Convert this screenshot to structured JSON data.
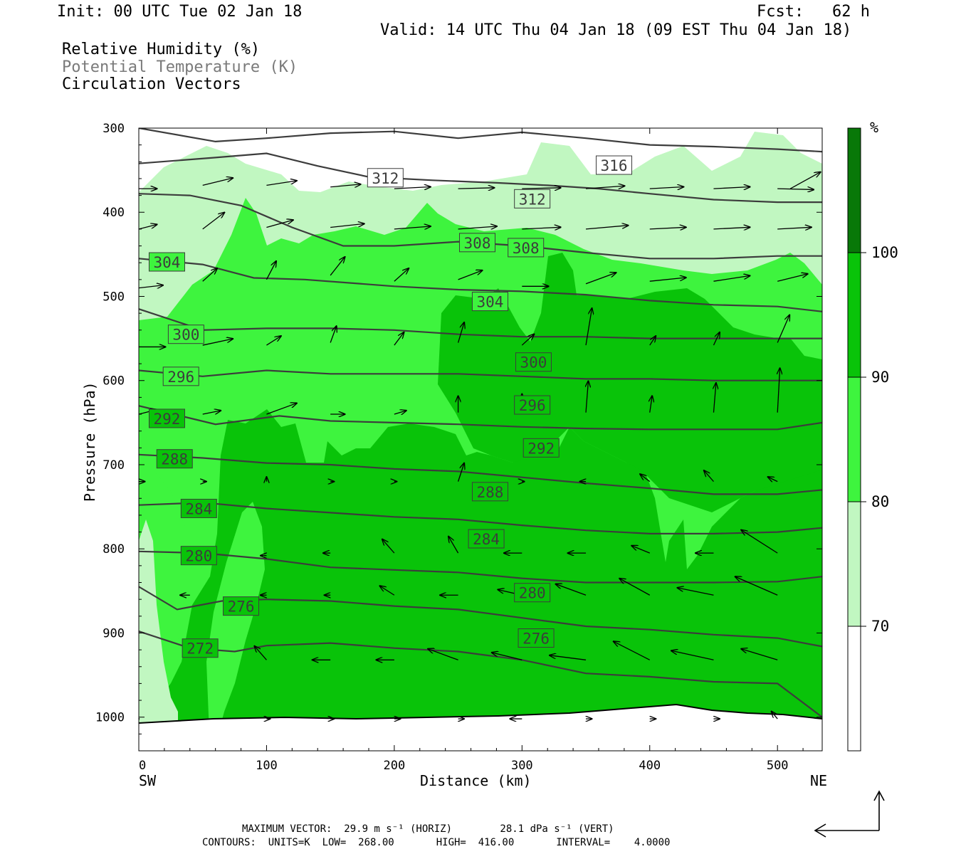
{
  "header": {
    "init": "Init: 00 UTC Tue 02 Jan 18",
    "fcst": "Fcst:   62 h",
    "valid": "Valid: 14 UTC Thu 04 Jan 18 (09 EST Thu 04 Jan 18)"
  },
  "fields": {
    "rh": "Relative Humidity (%)",
    "theta": "Potential Temperature (K)",
    "vectors": "Circulation Vectors"
  },
  "chart_data": {
    "type": "heatmap",
    "xlabel": "Distance (km)",
    "ylabel": "Pressure (hPa)",
    "xlim": [
      0,
      535
    ],
    "ylim": [
      1040,
      300
    ],
    "x_ticks": [
      0,
      100,
      200,
      300,
      400,
      500
    ],
    "y_ticks": [
      300,
      400,
      500,
      600,
      700,
      800,
      900,
      1000
    ],
    "end_labels": {
      "left": "SW",
      "right": "NE"
    },
    "colorbar": {
      "unit": "%",
      "levels": [
        70,
        80,
        90,
        100
      ],
      "colors": [
        "#ffffff",
        "#c1f7c1",
        "#3ef43e",
        "#09c309",
        "#087808"
      ]
    },
    "theta_contours": [
      {
        "value": 272,
        "label_x": 48,
        "label_p": 918,
        "points": [
          [
            0,
            898
          ],
          [
            40,
            918
          ],
          [
            75,
            922
          ],
          [
            100,
            915
          ],
          [
            150,
            912
          ],
          [
            200,
            918
          ],
          [
            250,
            922
          ],
          [
            300,
            932
          ],
          [
            350,
            948
          ],
          [
            400,
            952
          ],
          [
            450,
            958
          ],
          [
            500,
            960
          ],
          [
            535,
            1000
          ]
        ]
      },
      {
        "value": 276,
        "label_x": 80,
        "label_p": 868,
        "points": [
          [
            0,
            845
          ],
          [
            30,
            872
          ],
          [
            65,
            862
          ],
          [
            100,
            860
          ],
          [
            150,
            862
          ],
          [
            200,
            868
          ],
          [
            250,
            872
          ],
          [
            300,
            882
          ],
          [
            350,
            892
          ],
          [
            400,
            896
          ],
          [
            450,
            902
          ],
          [
            500,
            906
          ],
          [
            535,
            916
          ]
        ]
      },
      {
        "value": 280,
        "label_x": 47,
        "label_p": 808,
        "points": [
          [
            0,
            803
          ],
          [
            50,
            805
          ],
          [
            100,
            812
          ],
          [
            150,
            822
          ],
          [
            200,
            825
          ],
          [
            250,
            828
          ],
          [
            300,
            835
          ],
          [
            350,
            840
          ],
          [
            400,
            840
          ],
          [
            450,
            840
          ],
          [
            500,
            839
          ],
          [
            535,
            833
          ]
        ]
      },
      {
        "value": 284,
        "label_x": 47,
        "label_p": 752,
        "points": [
          [
            0,
            748
          ],
          [
            50,
            745
          ],
          [
            100,
            752
          ],
          [
            150,
            757
          ],
          [
            200,
            762
          ],
          [
            250,
            765
          ],
          [
            300,
            772
          ],
          [
            350,
            778
          ],
          [
            400,
            782
          ],
          [
            450,
            782
          ],
          [
            500,
            780
          ],
          [
            535,
            775
          ]
        ]
      },
      {
        "value": 288,
        "label_x": 28,
        "label_p": 693,
        "points": [
          [
            0,
            688
          ],
          [
            50,
            692
          ],
          [
            100,
            698
          ],
          [
            150,
            700
          ],
          [
            200,
            705
          ],
          [
            250,
            708
          ],
          [
            300,
            715
          ],
          [
            350,
            722
          ],
          [
            400,
            728
          ],
          [
            450,
            735
          ],
          [
            500,
            735
          ],
          [
            535,
            730
          ]
        ]
      },
      {
        "value": 292,
        "label_x": 22,
        "label_p": 645,
        "points": [
          [
            0,
            630
          ],
          [
            60,
            652
          ],
          [
            110,
            642
          ],
          [
            150,
            648
          ],
          [
            200,
            650
          ],
          [
            250,
            652
          ],
          [
            300,
            655
          ],
          [
            350,
            657
          ],
          [
            400,
            658
          ],
          [
            450,
            658
          ],
          [
            500,
            658
          ],
          [
            535,
            650
          ]
        ]
      },
      {
        "value": 296,
        "label_x": 33,
        "label_p": 595,
        "points": [
          [
            0,
            588
          ],
          [
            50,
            595
          ],
          [
            100,
            588
          ],
          [
            150,
            592
          ],
          [
            200,
            592
          ],
          [
            250,
            592
          ],
          [
            300,
            595
          ],
          [
            350,
            598
          ],
          [
            400,
            598
          ],
          [
            450,
            600
          ],
          [
            500,
            600
          ],
          [
            535,
            600
          ]
        ]
      },
      {
        "value": 300,
        "label_x": 37,
        "label_p": 545,
        "points": [
          [
            0,
            515
          ],
          [
            50,
            540
          ],
          [
            100,
            538
          ],
          [
            150,
            538
          ],
          [
            200,
            540
          ],
          [
            250,
            545
          ],
          [
            300,
            548
          ],
          [
            350,
            548
          ],
          [
            400,
            550
          ],
          [
            450,
            550
          ],
          [
            500,
            550
          ],
          [
            535,
            550
          ]
        ]
      },
      {
        "value": 304,
        "label_x": 22,
        "label_p": 459,
        "points": [
          [
            0,
            455
          ],
          [
            50,
            462
          ],
          [
            90,
            478
          ],
          [
            130,
            480
          ],
          [
            200,
            488
          ],
          [
            250,
            492
          ],
          [
            300,
            494
          ],
          [
            350,
            498
          ],
          [
            400,
            505
          ],
          [
            450,
            510
          ],
          [
            500,
            512
          ],
          [
            535,
            518
          ]
        ]
      },
      {
        "value": 308,
        "label_x": 265,
        "label_p": 436,
        "points": [
          [
            0,
            378
          ],
          [
            40,
            380
          ],
          [
            80,
            392
          ],
          [
            120,
            418
          ],
          [
            160,
            440
          ],
          [
            200,
            440
          ],
          [
            250,
            435
          ],
          [
            300,
            440
          ],
          [
            350,
            448
          ],
          [
            400,
            455
          ],
          [
            450,
            455
          ],
          [
            500,
            452
          ],
          [
            535,
            452
          ]
        ]
      },
      {
        "value": 312,
        "label_x": 193,
        "label_p": 359,
        "points": [
          [
            0,
            342
          ],
          [
            60,
            335
          ],
          [
            100,
            330
          ],
          [
            140,
            345
          ],
          [
            180,
            358
          ],
          [
            230,
            362
          ],
          [
            280,
            365
          ],
          [
            320,
            368
          ],
          [
            360,
            372
          ],
          [
            400,
            378
          ],
          [
            450,
            385
          ],
          [
            500,
            388
          ],
          [
            535,
            388
          ]
        ]
      },
      {
        "value": 316,
        "label_x": 372,
        "label_p": 344,
        "points": [
          [
            0,
            300
          ],
          [
            60,
            316
          ],
          [
            100,
            312
          ],
          [
            150,
            306
          ],
          [
            200,
            304
          ],
          [
            250,
            312
          ],
          [
            300,
            305
          ],
          [
            350,
            312
          ],
          [
            400,
            320
          ],
          [
            450,
            322
          ],
          [
            500,
            325
          ],
          [
            535,
            328
          ]
        ]
      }
    ],
    "extra_labels": [
      {
        "value": 312,
        "x": 308,
        "p": 384
      },
      {
        "value": 308,
        "x": 303,
        "p": 442
      },
      {
        "value": 304,
        "x": 275,
        "p": 506
      },
      {
        "value": 300,
        "x": 309,
        "p": 578
      },
      {
        "value": 296,
        "x": 308,
        "p": 629
      },
      {
        "value": 292,
        "x": 315,
        "p": 680
      },
      {
        "value": 288,
        "x": 275,
        "p": 732
      },
      {
        "value": 284,
        "x": 272,
        "p": 788
      },
      {
        "value": 280,
        "x": 308,
        "p": 852
      },
      {
        "value": 276,
        "x": 311,
        "p": 906
      }
    ],
    "vectors": [
      [
        0,
        372,
        15,
        0
      ],
      [
        50,
        368,
        25,
        8
      ],
      [
        100,
        368,
        25,
        5
      ],
      [
        150,
        370,
        25,
        3
      ],
      [
        200,
        372,
        30,
        2
      ],
      [
        250,
        372,
        30,
        1
      ],
      [
        300,
        372,
        32,
        1
      ],
      [
        350,
        372,
        32,
        3
      ],
      [
        400,
        372,
        28,
        2
      ],
      [
        450,
        372,
        30,
        2
      ],
      [
        500,
        372,
        30,
        -1
      ],
      [
        510,
        372,
        25,
        18
      ],
      [
        0,
        420,
        15,
        5
      ],
      [
        50,
        420,
        18,
        18
      ],
      [
        100,
        418,
        22,
        8
      ],
      [
        150,
        418,
        28,
        4
      ],
      [
        200,
        420,
        30,
        3
      ],
      [
        250,
        420,
        32,
        3
      ],
      [
        300,
        420,
        32,
        2
      ],
      [
        350,
        420,
        35,
        4
      ],
      [
        400,
        420,
        30,
        2
      ],
      [
        450,
        420,
        30,
        2
      ],
      [
        500,
        420,
        28,
        2
      ],
      [
        0,
        490,
        20,
        3
      ],
      [
        50,
        482,
        12,
        14
      ],
      [
        100,
        480,
        8,
        20
      ],
      [
        150,
        475,
        12,
        20
      ],
      [
        200,
        482,
        12,
        14
      ],
      [
        250,
        480,
        20,
        10
      ],
      [
        300,
        488,
        22,
        0
      ],
      [
        350,
        485,
        25,
        12
      ],
      [
        400,
        482,
        30,
        4
      ],
      [
        450,
        482,
        30,
        6
      ],
      [
        500,
        482,
        25,
        8
      ],
      [
        0,
        560,
        22,
        0
      ],
      [
        50,
        558,
        25,
        7
      ],
      [
        100,
        558,
        12,
        10
      ],
      [
        150,
        555,
        5,
        18
      ],
      [
        200,
        558,
        8,
        14
      ],
      [
        250,
        555,
        5,
        22
      ],
      [
        300,
        558,
        10,
        12
      ],
      [
        350,
        558,
        5,
        40
      ],
      [
        400,
        558,
        5,
        10
      ],
      [
        450,
        558,
        5,
        14
      ],
      [
        500,
        555,
        10,
        30
      ],
      [
        0,
        640,
        15,
        5
      ],
      [
        50,
        640,
        15,
        4
      ],
      [
        100,
        640,
        25,
        12
      ],
      [
        150,
        640,
        12,
        0
      ],
      [
        200,
        640,
        10,
        4
      ],
      [
        250,
        638,
        0,
        18
      ],
      [
        300,
        638,
        0,
        20
      ],
      [
        350,
        638,
        2,
        34
      ],
      [
        400,
        638,
        2,
        18
      ],
      [
        450,
        638,
        2,
        32
      ],
      [
        500,
        638,
        2,
        48
      ],
      [
        0,
        720,
        5,
        0
      ],
      [
        50,
        720,
        3,
        0
      ],
      [
        100,
        720,
        0,
        5
      ],
      [
        150,
        720,
        3,
        0
      ],
      [
        200,
        720,
        2,
        0
      ],
      [
        250,
        720,
        5,
        20
      ],
      [
        300,
        720,
        2,
        0
      ],
      [
        350,
        720,
        -5,
        0
      ],
      [
        400,
        720,
        -8,
        8
      ],
      [
        450,
        720,
        -8,
        12
      ],
      [
        500,
        720,
        -8,
        5
      ],
      [
        100,
        808,
        -5,
        0
      ],
      [
        150,
        805,
        -6,
        0
      ],
      [
        200,
        805,
        -10,
        15
      ],
      [
        250,
        805,
        -8,
        18
      ],
      [
        300,
        805,
        -15,
        0
      ],
      [
        350,
        805,
        -15,
        0
      ],
      [
        400,
        805,
        -15,
        8
      ],
      [
        450,
        805,
        -15,
        0
      ],
      [
        500,
        805,
        -30,
        25
      ],
      [
        40,
        855,
        -8,
        0
      ],
      [
        100,
        855,
        -5,
        0
      ],
      [
        150,
        855,
        -5,
        0
      ],
      [
        200,
        855,
        -12,
        10
      ],
      [
        250,
        855,
        -15,
        0
      ],
      [
        300,
        855,
        -20,
        6
      ],
      [
        350,
        855,
        -25,
        12
      ],
      [
        400,
        855,
        -25,
        18
      ],
      [
        450,
        855,
        -30,
        8
      ],
      [
        500,
        855,
        -35,
        20
      ],
      [
        100,
        932,
        -10,
        15
      ],
      [
        150,
        932,
        -15,
        0
      ],
      [
        200,
        932,
        -15,
        0
      ],
      [
        250,
        932,
        -25,
        12
      ],
      [
        300,
        932,
        -25,
        8
      ],
      [
        350,
        932,
        -30,
        5
      ],
      [
        400,
        932,
        -30,
        20
      ],
      [
        450,
        932,
        -35,
        10
      ],
      [
        500,
        932,
        -30,
        12
      ],
      [
        0,
        1002,
        0,
        0
      ],
      [
        100,
        1002,
        3,
        0
      ],
      [
        150,
        1002,
        3,
        0
      ],
      [
        200,
        1002,
        5,
        0
      ],
      [
        250,
        1002,
        5,
        0
      ],
      [
        300,
        1002,
        -10,
        0
      ],
      [
        350,
        1002,
        5,
        0
      ],
      [
        400,
        1002,
        5,
        0
      ],
      [
        450,
        1002,
        5,
        0
      ],
      [
        500,
        1002,
        -5,
        8
      ]
    ]
  },
  "colorbar_unit": "%",
  "footer": {
    "max_vector": "MAXIMUM VECTOR:  29.9 m s⁻¹ (HORIZ)        28.1 dPa s⁻¹ (VERT)",
    "contours": "CONTOURS:  UNITS=K  LOW=  268.00       HIGH=  416.00       INTERVAL=    4.0000"
  }
}
